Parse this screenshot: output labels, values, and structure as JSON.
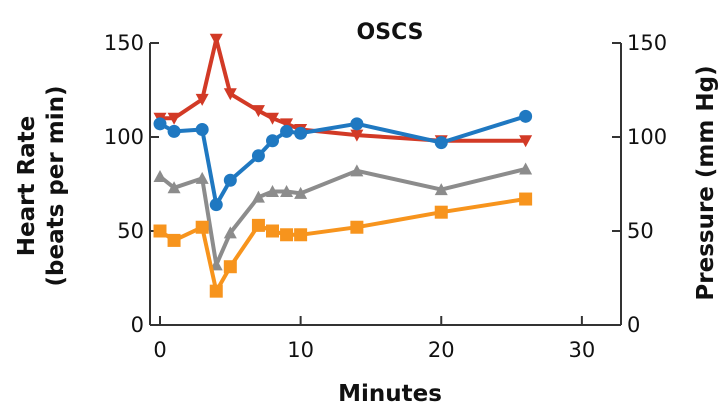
{
  "chart_data": {
    "type": "line",
    "title": "OSCS",
    "xlabel": "Minutes",
    "ylabel_left": [
      "Heart Rate",
      "(beats per min)"
    ],
    "ylabel_right": "Pressure (mm Hg)",
    "xlim": [
      0,
      32
    ],
    "ylim_left": [
      0,
      150
    ],
    "ylim_right": [
      0,
      150
    ],
    "x_ticks": [
      "0",
      "10",
      "20",
      "30"
    ],
    "x_tick_values": [
      0,
      10,
      20,
      30
    ],
    "y_left_ticks": [
      "0",
      "50",
      "100",
      "150"
    ],
    "y_left_tick_values": [
      0,
      50,
      100,
      150
    ],
    "y_right_ticks": [
      "0",
      "50",
      "100",
      "150"
    ],
    "y_right_tick_values": [
      0,
      50,
      100,
      150
    ],
    "grid": false,
    "series": [
      {
        "color": "#d23a26",
        "marker": "triangle-down",
        "axis": "right",
        "x": [
          0,
          1,
          3,
          4,
          5,
          7,
          8,
          9,
          10,
          14,
          20,
          26
        ],
        "y": [
          110,
          110,
          120,
          152,
          123,
          114,
          110,
          107,
          104,
          101,
          98,
          98
        ]
      },
      {
        "color": "#1f78c1",
        "marker": "circle",
        "axis": "left",
        "x": [
          0,
          1,
          3,
          4,
          5,
          7,
          8,
          9,
          10,
          14,
          20,
          26
        ],
        "y": [
          107,
          103,
          104,
          64,
          77,
          90,
          98,
          103,
          102,
          107,
          97,
          111
        ]
      },
      {
        "color": "#8c8c8c",
        "marker": "triangle-up",
        "axis": "right",
        "x": [
          0,
          1,
          3,
          4,
          5,
          7,
          8,
          9,
          10,
          14,
          20,
          26
        ],
        "y": [
          79,
          73,
          78,
          32,
          49,
          68,
          71,
          71,
          70,
          82,
          72,
          83
        ]
      },
      {
        "color": "#f7941d",
        "marker": "square",
        "axis": "right",
        "x": [
          0,
          1,
          3,
          4,
          5,
          7,
          8,
          9,
          10,
          14,
          20,
          26
        ],
        "y": [
          50,
          45,
          52,
          18,
          31,
          53,
          50,
          48,
          48,
          52,
          60,
          67
        ]
      }
    ]
  }
}
